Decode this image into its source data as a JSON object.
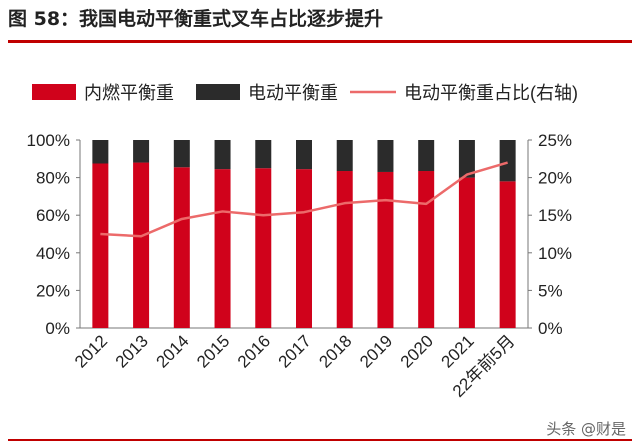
{
  "figure_title": "图 58：我国电动平衡重式叉车占比逐步提升",
  "watermark": "头条 @财是",
  "colors": {
    "ice": "#d0021b",
    "electric": "#2b2b2b",
    "ratio_line": "#ec6a6a",
    "accent": "#c00000"
  },
  "chart_data": {
    "type": "bar",
    "stacked": true,
    "categories": [
      "2012",
      "2013",
      "2014",
      "2015",
      "2016",
      "2017",
      "2018",
      "2019",
      "2020",
      "2021",
      "22年前5月"
    ],
    "series": [
      {
        "name": "内燃平衡重",
        "kind": "bar",
        "axis": "left",
        "values": [
          87.5,
          88.0,
          85.5,
          84.5,
          85.0,
          84.5,
          83.5,
          83.0,
          83.5,
          80.0,
          78.0
        ]
      },
      {
        "name": "电动平衡重",
        "kind": "bar",
        "axis": "left",
        "values": [
          12.5,
          12.0,
          14.5,
          15.5,
          15.0,
          15.5,
          16.5,
          17.0,
          16.5,
          20.0,
          22.0
        ]
      },
      {
        "name": "电动平衡重占比(右轴)",
        "kind": "line",
        "axis": "right",
        "values": [
          12.5,
          12.2,
          14.5,
          15.5,
          15.0,
          15.4,
          16.6,
          17.0,
          16.5,
          20.4,
          22.0
        ]
      }
    ],
    "y_left": {
      "min": 0,
      "max": 100,
      "ticks": [
        "0%",
        "20%",
        "40%",
        "60%",
        "80%",
        "100%"
      ]
    },
    "y_right": {
      "min": 0,
      "max": 25,
      "ticks": [
        "0%",
        "5%",
        "10%",
        "15%",
        "20%",
        "25%"
      ]
    },
    "legend_position": "top",
    "grid": false
  }
}
